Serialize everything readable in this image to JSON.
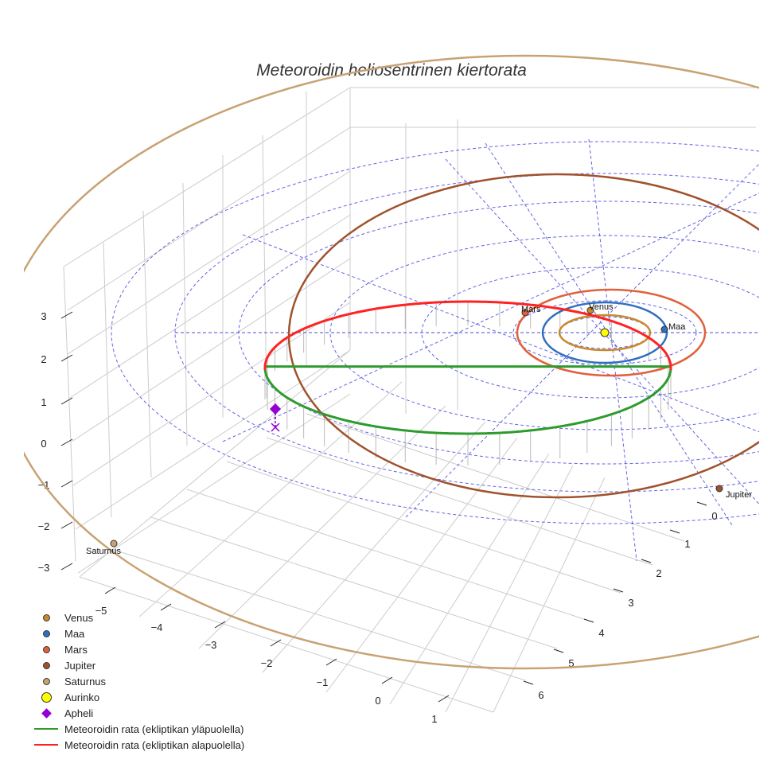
{
  "chart_data": {
    "type": "line3d",
    "title": "Meteoroidin heliosentrinen kiertorata",
    "axis_ticks": {
      "x": [
        "−5",
        "−4",
        "−3",
        "−2",
        "−1",
        "0",
        "1"
      ],
      "y": [
        "0",
        "1",
        "2",
        "3",
        "4",
        "5",
        "6"
      ],
      "z": [
        "3",
        "2",
        "1",
        "0",
        "−1",
        "−2",
        "−3"
      ]
    },
    "planet_labels": {
      "venus": "Venus",
      "earth": "Maa",
      "mars": "Mars",
      "jupiter": "Jupiter",
      "saturn": "Saturnus"
    },
    "colors": {
      "venus": "#c98a2a",
      "earth": "#2f6fbf",
      "mars": "#e0603a",
      "jupiter": "#a0522d",
      "saturn": "#c8a273",
      "sun": "#ffff00",
      "aphelion": "#9400d3",
      "orbit_above": "#2e9b2e",
      "orbit_below": "#ff2222",
      "ecliptic_grid": "#4a4ae0",
      "box_grid": "#cccccc"
    },
    "legend": [
      {
        "label": "Venus",
        "symbol": "dot",
        "color": "#c98a2a"
      },
      {
        "label": "Maa",
        "symbol": "dot",
        "color": "#2f6fbf"
      },
      {
        "label": "Mars",
        "symbol": "dot",
        "color": "#e0603a"
      },
      {
        "label": "Jupiter",
        "symbol": "dot",
        "color": "#a0522d"
      },
      {
        "label": "Saturnus",
        "symbol": "dot",
        "color": "#c8a273"
      },
      {
        "label": "Aurinko",
        "symbol": "sun",
        "color": "#ffff00"
      },
      {
        "label": "Apheli",
        "symbol": "diamond",
        "color": "#9400d3"
      },
      {
        "label": "Meteoroidin rata (ekliptikan yläpuolella)",
        "symbol": "line",
        "color": "#2e9b2e"
      },
      {
        "label": "Meteoroidin rata (ekliptikan alapuolella)",
        "symbol": "line",
        "color": "#ff2222"
      }
    ]
  }
}
